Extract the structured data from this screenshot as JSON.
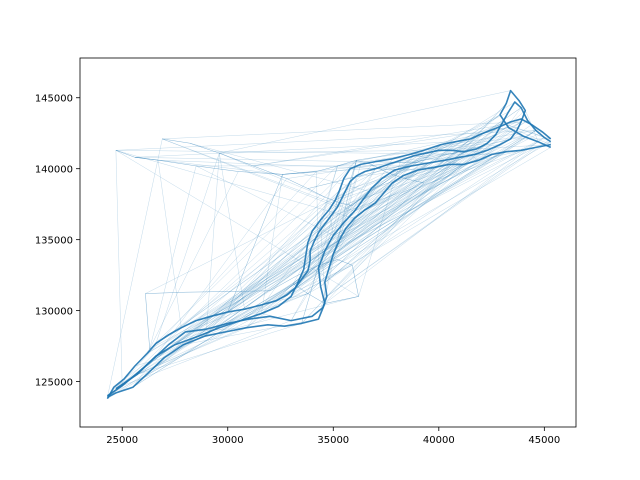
{
  "chart_data": {
    "type": "line",
    "title": "",
    "xlabel": "",
    "ylabel": "",
    "xlim": [
      23000,
      46500
    ],
    "ylim": [
      121800,
      147800
    ],
    "xticks": [
      25000,
      30000,
      35000,
      40000,
      45000
    ],
    "yticks": [
      125000,
      130000,
      135000,
      140000,
      145000
    ],
    "xtick_labels": [
      "25000",
      "30000",
      "35000",
      "40000",
      "45000"
    ],
    "ytick_labels": [
      "125000",
      "130000",
      "135000",
      "140000",
      "145000"
    ],
    "grid": false,
    "legend": "none",
    "line_color": "#1f77b4",
    "series": [
      {
        "points": [
          [
            24300,
            123800
          ],
          [
            24600,
            124600
          ],
          [
            25100,
            125200
          ],
          [
            25600,
            126100
          ],
          [
            26200,
            127000
          ],
          [
            26600,
            127700
          ],
          [
            27200,
            128300
          ],
          [
            27800,
            128800
          ],
          [
            28500,
            129300
          ],
          [
            29200,
            129600
          ],
          [
            30000,
            129900
          ],
          [
            30800,
            130100
          ],
          [
            31600,
            130400
          ],
          [
            32300,
            130700
          ],
          [
            32800,
            131100
          ],
          [
            33200,
            131600
          ],
          [
            33500,
            132200
          ],
          [
            33800,
            132800
          ],
          [
            33900,
            133500
          ],
          [
            33900,
            134200
          ],
          [
            34100,
            134900
          ],
          [
            34300,
            135500
          ],
          [
            34600,
            136100
          ],
          [
            34900,
            136700
          ],
          [
            35200,
            137300
          ],
          [
            35400,
            137900
          ],
          [
            35600,
            138500
          ],
          [
            35800,
            139100
          ],
          [
            36100,
            139500
          ],
          [
            36500,
            139800
          ],
          [
            37000,
            140000
          ],
          [
            37600,
            140300
          ],
          [
            38200,
            140600
          ],
          [
            38800,
            140900
          ],
          [
            39400,
            141100
          ],
          [
            40000,
            141300
          ],
          [
            40600,
            141300
          ],
          [
            41200,
            141200
          ],
          [
            41800,
            141400
          ],
          [
            42300,
            141800
          ],
          [
            42700,
            142400
          ],
          [
            43000,
            143200
          ],
          [
            43300,
            144000
          ],
          [
            43600,
            144700
          ],
          [
            43900,
            144300
          ],
          [
            44200,
            143400
          ],
          [
            44600,
            142700
          ],
          [
            45000,
            142200
          ],
          [
            45300,
            141900
          ]
        ]
      },
      {
        "points": [
          [
            24300,
            124000
          ],
          [
            25000,
            124700
          ],
          [
            25800,
            125700
          ],
          [
            26400,
            126500
          ],
          [
            27200,
            127600
          ],
          [
            28000,
            128500
          ],
          [
            29000,
            128700
          ],
          [
            30000,
            129100
          ],
          [
            31000,
            129400
          ],
          [
            32000,
            129600
          ],
          [
            33000,
            129300
          ],
          [
            34000,
            129600
          ],
          [
            34500,
            130200
          ],
          [
            34700,
            131000
          ],
          [
            34600,
            132000
          ],
          [
            34800,
            133000
          ],
          [
            35000,
            134000
          ],
          [
            35300,
            135000
          ],
          [
            35600,
            135800
          ],
          [
            36000,
            136500
          ],
          [
            36500,
            137100
          ],
          [
            37000,
            137600
          ],
          [
            37400,
            138300
          ],
          [
            37800,
            139000
          ],
          [
            38300,
            139500
          ],
          [
            39000,
            139900
          ],
          [
            39800,
            140100
          ],
          [
            40500,
            140300
          ],
          [
            41200,
            140300
          ],
          [
            41900,
            140600
          ],
          [
            42500,
            141000
          ],
          [
            43200,
            141200
          ],
          [
            43900,
            141300
          ],
          [
            44600,
            141500
          ],
          [
            45300,
            141700
          ]
        ]
      },
      {
        "points": [
          [
            24700,
            124500
          ],
          [
            25700,
            125500
          ],
          [
            26600,
            126800
          ],
          [
            27500,
            127600
          ],
          [
            28600,
            128200
          ],
          [
            29600,
            128800
          ],
          [
            30600,
            129300
          ],
          [
            31600,
            129800
          ],
          [
            32400,
            130300
          ],
          [
            33000,
            131000
          ],
          [
            33300,
            131900
          ],
          [
            33600,
            132900
          ],
          [
            33700,
            133900
          ],
          [
            33800,
            134800
          ],
          [
            34000,
            135600
          ],
          [
            34400,
            136400
          ],
          [
            34800,
            137100
          ],
          [
            35100,
            137800
          ],
          [
            35300,
            138500
          ],
          [
            35500,
            139300
          ],
          [
            35800,
            140000
          ],
          [
            36300,
            140300
          ],
          [
            37000,
            140500
          ],
          [
            37800,
            140700
          ],
          [
            38600,
            141000
          ],
          [
            39300,
            141300
          ],
          [
            40100,
            141700
          ],
          [
            40800,
            141900
          ],
          [
            41500,
            142100
          ],
          [
            42100,
            142500
          ],
          [
            42800,
            142900
          ],
          [
            43400,
            143300
          ],
          [
            43900,
            143500
          ],
          [
            44400,
            143100
          ],
          [
            44900,
            142600
          ],
          [
            45300,
            142100
          ]
        ]
      },
      {
        "points": [
          [
            24300,
            123900
          ],
          [
            24700,
            124200
          ],
          [
            25500,
            124600
          ],
          [
            26300,
            125700
          ],
          [
            27000,
            126700
          ],
          [
            27900,
            127600
          ],
          [
            28900,
            128200
          ],
          [
            29900,
            128500
          ],
          [
            30900,
            128800
          ],
          [
            31900,
            129000
          ],
          [
            32700,
            128900
          ],
          [
            33500,
            129100
          ],
          [
            34300,
            129400
          ],
          [
            34600,
            130500
          ],
          [
            34400,
            131700
          ],
          [
            34300,
            133000
          ],
          [
            34600,
            134200
          ],
          [
            35000,
            135300
          ],
          [
            35500,
            136200
          ],
          [
            36000,
            137000
          ],
          [
            36400,
            137800
          ],
          [
            36800,
            138600
          ],
          [
            37300,
            139300
          ],
          [
            37900,
            139900
          ],
          [
            38700,
            140200
          ],
          [
            39500,
            140400
          ],
          [
            40300,
            140600
          ],
          [
            41000,
            140800
          ],
          [
            41700,
            141000
          ],
          [
            42300,
            141300
          ],
          [
            42900,
            141700
          ],
          [
            43400,
            142100
          ],
          [
            43700,
            142700
          ],
          [
            43900,
            143300
          ],
          [
            44100,
            144100
          ],
          [
            43800,
            144800
          ],
          [
            43400,
            145500
          ],
          [
            43200,
            144600
          ],
          [
            42900,
            143800
          ],
          [
            43300,
            142900
          ],
          [
            44000,
            142300
          ],
          [
            44700,
            141900
          ],
          [
            45300,
            141500
          ]
        ]
      },
      {
        "points": [
          [
            26300,
            127300
          ],
          [
            26100,
            131200
          ],
          [
            28000,
            131300
          ],
          [
            32000,
            131400
          ],
          [
            33200,
            132400
          ],
          [
            34300,
            133200
          ],
          [
            35200,
            133600
          ],
          [
            35900,
            133200
          ],
          [
            36200,
            131000
          ],
          [
            34600,
            130500
          ],
          [
            33800,
            131200
          ],
          [
            33100,
            131900
          ]
        ]
      },
      {
        "points": [
          [
            24700,
            141300
          ],
          [
            25600,
            140800
          ],
          [
            26700,
            140600
          ],
          [
            28500,
            140200
          ],
          [
            30500,
            139800
          ],
          [
            32600,
            139600
          ],
          [
            34200,
            139800
          ],
          [
            35200,
            140200
          ],
          [
            36100,
            140600
          ],
          [
            36800,
            140300
          ],
          [
            37600,
            139700
          ],
          [
            38400,
            139300
          ],
          [
            39300,
            139000
          ]
        ]
      },
      {
        "points": [
          [
            26900,
            142100
          ],
          [
            28200,
            141800
          ],
          [
            29600,
            141100
          ],
          [
            31200,
            140200
          ],
          [
            32800,
            139300
          ],
          [
            33800,
            138600
          ],
          [
            34600,
            138000
          ],
          [
            35300,
            137600
          ],
          [
            35900,
            137400
          ],
          [
            36700,
            138400
          ],
          [
            37500,
            139100
          ]
        ]
      }
    ]
  }
}
